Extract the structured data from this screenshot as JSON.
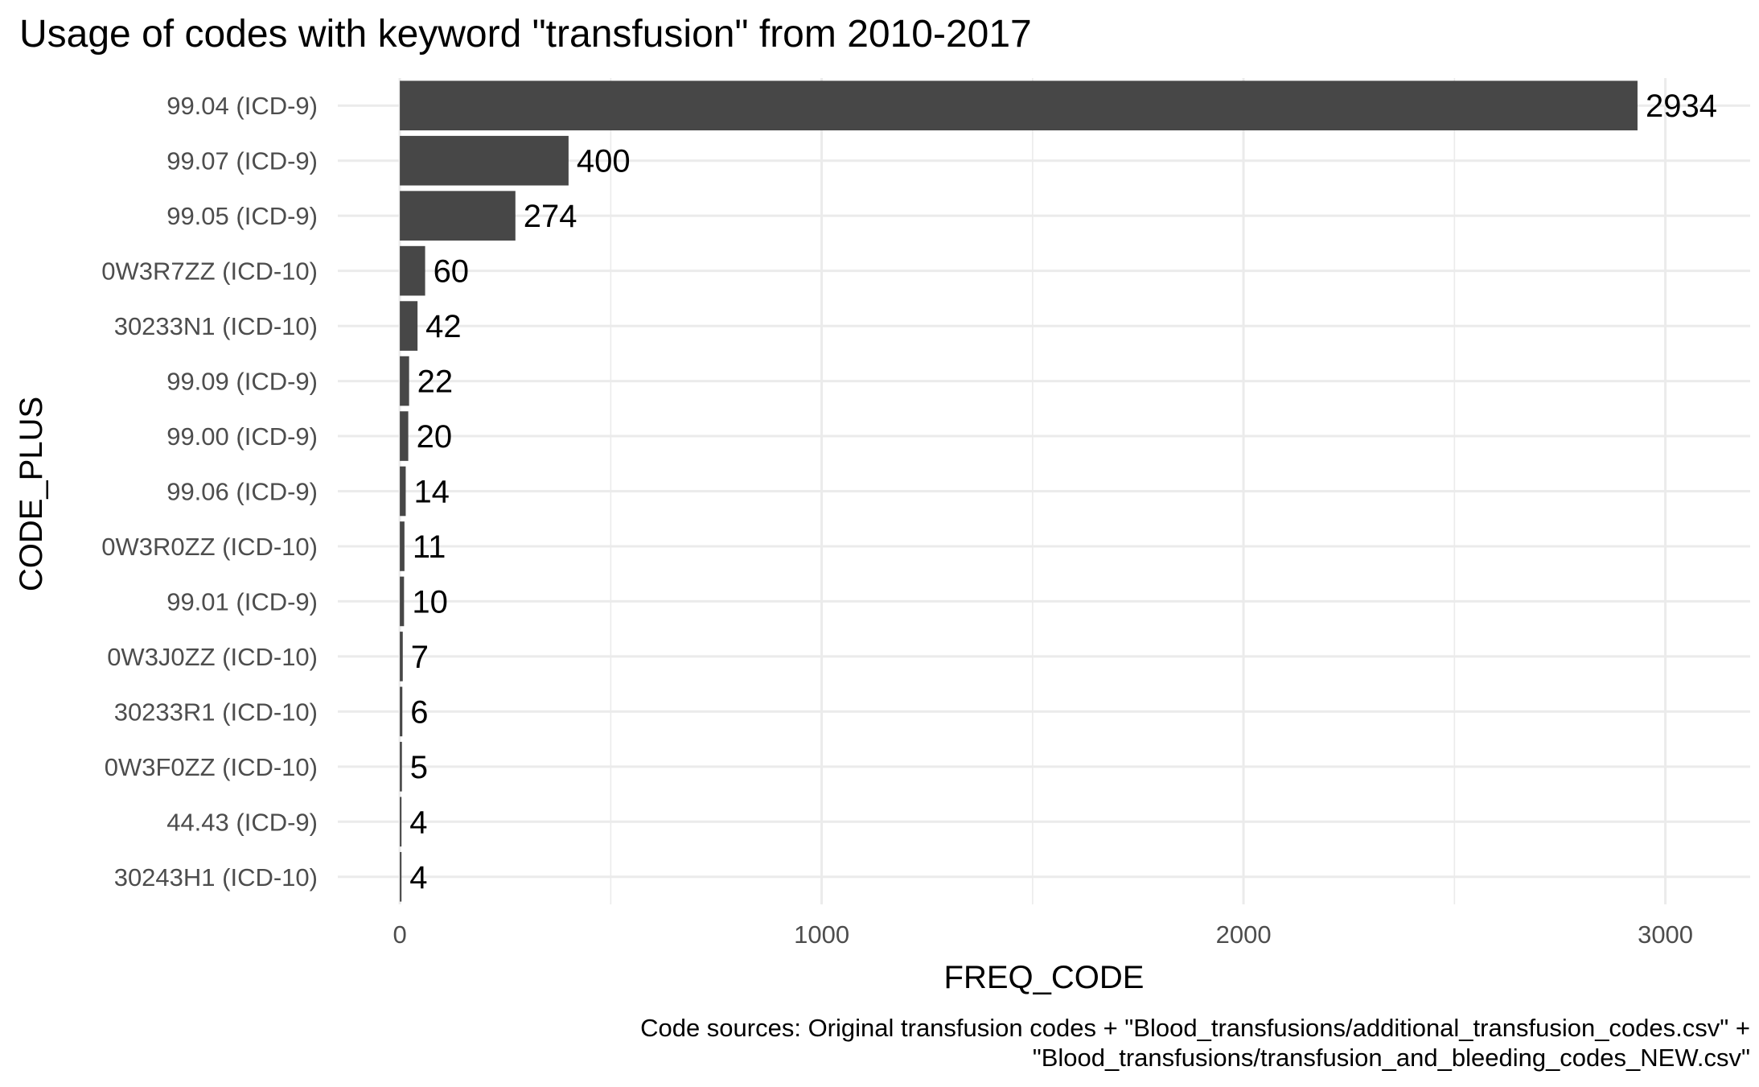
{
  "chart_data": {
    "type": "bar",
    "orientation": "horizontal",
    "title": "Usage of codes with keyword \"transfusion\" from 2010-2017",
    "xlabel": "FREQ_CODE",
    "ylabel": "CODE_PLUS",
    "caption_lines": [
      "Code sources: Original transfusion codes + \"Blood_transfusions/additional_transfusion_codes.csv\" +",
      "\"Blood_transfusions/transfusion_and_bleeding_codes_NEW.csv\""
    ],
    "categories": [
      "99.04 (ICD-9)",
      "99.07 (ICD-9)",
      "99.05 (ICD-9)",
      "0W3R7ZZ (ICD-10)",
      "30233N1 (ICD-10)",
      "99.09 (ICD-9)",
      "99.00 (ICD-9)",
      "99.06 (ICD-9)",
      "0W3R0ZZ (ICD-10)",
      "99.01 (ICD-9)",
      "0W3J0ZZ (ICD-10)",
      "30233R1 (ICD-10)",
      "0W3F0ZZ (ICD-10)",
      "44.43 (ICD-9)",
      "30243H1 (ICD-10)"
    ],
    "values": [
      2934,
      400,
      274,
      60,
      42,
      22,
      20,
      14,
      11,
      10,
      7,
      6,
      5,
      4,
      4
    ],
    "xticks": [
      0,
      1000,
      2000,
      3000
    ],
    "xtick_labels": [
      "0",
      "1000",
      "2000",
      "3000"
    ],
    "xlim": [
      -147,
      3201
    ],
    "grid": true,
    "bar_color": "#474747",
    "data_labels": true
  }
}
